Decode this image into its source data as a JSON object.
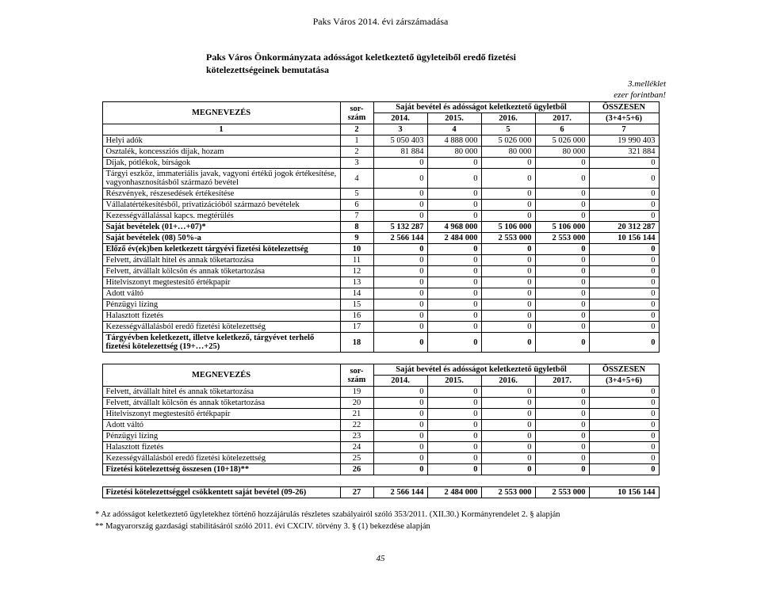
{
  "header": "Paks Város 2014. évi zárszámadása",
  "subtitle_l1": "Paks Város Önkormányzata adósságot keletkeztető ügyleteiből eredő fizetési",
  "subtitle_l2": "kötelezettségeinek bemutatása",
  "attach": "3.melléklet",
  "unit": "ezer forintban!",
  "h": {
    "meg": "MEGNEVEZÉS",
    "sor": "sor-\nszám",
    "span": "Saját bevétel és adósságot keletkeztető ügyletből",
    "y14": "2014.",
    "y15": "2015.",
    "y16": "2016.",
    "y17": "2017.",
    "sumTop": "ÖSSZESEN",
    "sumBot": "(3+4+5+6)",
    "idx1": "1",
    "idx2": "2",
    "idx3": "3",
    "idx4": "4",
    "idx5": "5",
    "idx6": "6",
    "idx7": "7"
  },
  "t1": [
    {
      "l": "Helyi adók",
      "s": "1",
      "a": "5 050 403",
      "b": "4 888 000",
      "c": "5 026 000",
      "d": "5 026 000",
      "e": "19 990 403"
    },
    {
      "l": "Osztalék, koncessziós díjak, hozam",
      "s": "2",
      "a": "81 884",
      "b": "80 000",
      "c": "80 000",
      "d": "80 000",
      "e": "321 884"
    },
    {
      "l": "Díjak, pótlékok, bírságok",
      "s": "3",
      "a": "0",
      "b": "0",
      "c": "0",
      "d": "0",
      "e": "0"
    },
    {
      "l": "Tárgyi eszköz, immateriális javak, vagyoni értékű jogok értékesítése, vagyonhasznosításból származó bevétel",
      "s": "4",
      "a": "0",
      "b": "0",
      "c": "0",
      "d": "0",
      "e": "0"
    },
    {
      "l": "Részvények, részesedések értékesítése",
      "s": "5",
      "a": "0",
      "b": "0",
      "c": "0",
      "d": "0",
      "e": "0"
    },
    {
      "l": "Vállalatértékesítésből, privatizációból származó bevételek",
      "s": "6",
      "a": "0",
      "b": "0",
      "c": "0",
      "d": "0",
      "e": "0"
    },
    {
      "l": "Kezességvállalással kapcs. megtérülés",
      "s": "7",
      "a": "0",
      "b": "0",
      "c": "0",
      "d": "0",
      "e": "0"
    },
    {
      "l": "Saját bevételek (01+…+07)*",
      "s": "8",
      "a": "5 132 287",
      "b": "4 968 000",
      "c": "5 106 000",
      "d": "5 106 000",
      "e": "20 312 287",
      "bold": true
    },
    {
      "l": "Saját bevételek (08) 50%-a",
      "s": "9",
      "a": "2 566 144",
      "b": "2 484 000",
      "c": "2 553 000",
      "d": "2 553 000",
      "e": "10 156 144",
      "bold": true
    },
    {
      "l": "Előző év(ek)ben keletkezett tárgyévi fizetési kötelezettség",
      "s": "10",
      "a": "0",
      "b": "0",
      "c": "0",
      "d": "0",
      "e": "0",
      "bold": true
    },
    {
      "l": "Felvett, átvállalt hitel és annak tőketartozása",
      "s": "11",
      "a": "0",
      "b": "0",
      "c": "0",
      "d": "0",
      "e": "0"
    },
    {
      "l": "Felvett, átvállalt kölcsön és annak tőketartozása",
      "s": "12",
      "a": "0",
      "b": "0",
      "c": "0",
      "d": "0",
      "e": "0"
    },
    {
      "l": "Hitelviszonyt megtestesítő értékpapír",
      "s": "13",
      "a": "0",
      "b": "0",
      "c": "0",
      "d": "0",
      "e": "0"
    },
    {
      "l": "Adott váltó",
      "s": "14",
      "a": "0",
      "b": "0",
      "c": "0",
      "d": "0",
      "e": "0"
    },
    {
      "l": "Pénzügyi lízing",
      "s": "15",
      "a": "0",
      "b": "0",
      "c": "0",
      "d": "0",
      "e": "0"
    },
    {
      "l": "Halasztott fizetés",
      "s": "16",
      "a": "0",
      "b": "0",
      "c": "0",
      "d": "0",
      "e": "0"
    },
    {
      "l": "Kezességvállalásból eredő fizetési kötelezettség",
      "s": "17",
      "a": "0",
      "b": "0",
      "c": "0",
      "d": "0",
      "e": "0"
    },
    {
      "l": "Tárgyévben keletkezett, illetve keletkező, tárgyévet terhelő fizetési kötelezettség (19+…+25)",
      "s": "18",
      "a": "0",
      "b": "0",
      "c": "0",
      "d": "0",
      "e": "0",
      "bold": true
    }
  ],
  "t2": [
    {
      "l": "Felvett, átvállalt hitel és annak tőketartozása",
      "s": "19",
      "a": "0",
      "b": "0",
      "c": "0",
      "d": "0",
      "e": "0"
    },
    {
      "l": "Felvett, átvállalt kölcsön és annak tőketartozása",
      "s": "20",
      "a": "0",
      "b": "0",
      "c": "0",
      "d": "0",
      "e": "0"
    },
    {
      "l": "Hitelviszonyt megtestesítő értékpapír",
      "s": "21",
      "a": "0",
      "b": "0",
      "c": "0",
      "d": "0",
      "e": "0"
    },
    {
      "l": "Adott váltó",
      "s": "22",
      "a": "0",
      "b": "0",
      "c": "0",
      "d": "0",
      "e": "0"
    },
    {
      "l": "Pénzügyi lízing",
      "s": "23",
      "a": "0",
      "b": "0",
      "c": "0",
      "d": "0",
      "e": "0"
    },
    {
      "l": "Halasztott fizetés",
      "s": "24",
      "a": "0",
      "b": "0",
      "c": "0",
      "d": "0",
      "e": "0"
    },
    {
      "l": "Kezességvállalásból eredő fizetési kötelezettség",
      "s": "25",
      "a": "0",
      "b": "0",
      "c": "0",
      "d": "0",
      "e": "0"
    },
    {
      "l": "Fizetési kötelezettség összesen (10+18)**",
      "s": "26",
      "a": "0",
      "b": "0",
      "c": "0",
      "d": "0",
      "e": "0",
      "bold": true
    }
  ],
  "t3": [
    {
      "l": "Fizetési kötelezettséggel csökkentett saját bevétel (09-26)",
      "s": "27",
      "a": "2 566 144",
      "b": "2 484 000",
      "c": "2 553 000",
      "d": "2 553 000",
      "e": "10 156 144",
      "bold": true
    }
  ],
  "fn1": "*  Az adósságot keletkeztető ügyletekhez történő hozzájárulás részletes szabályairól szóló 353/2011. (XII.30.) Kormányrendelet 2. § alapján",
  "fn2": "** Magyarország gazdasági stabilitásáról szóló 2011. évi CXCIV. törvény 3. § (1) bekezdése alapján",
  "page": "45"
}
